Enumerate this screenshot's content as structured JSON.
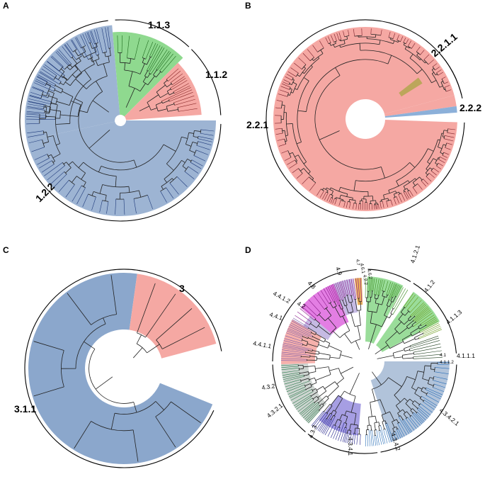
{
  "panels": {
    "A": {
      "letter": "A",
      "clades": [
        {
          "label": "1.1.3",
          "color": "#8fd98f"
        },
        {
          "label": "1.1.2",
          "color": "#f5a8a3"
        },
        {
          "label": "1.2.2",
          "color": "#9db4d3"
        }
      ]
    },
    "B": {
      "letter": "B",
      "clades": [
        {
          "label": "2.2.1.1",
          "color": "#b1a64f"
        },
        {
          "label": "2.2.2",
          "color": "#8cb0d9"
        },
        {
          "label": "2.2.1",
          "color": "#f5a8a3"
        }
      ]
    },
    "C": {
      "letter": "C",
      "clades": [
        {
          "label": "3",
          "color": "#f5a8a3"
        },
        {
          "label": "3.1.1",
          "color": "#8ba7cc"
        }
      ]
    },
    "D": {
      "letter": "D",
      "labels": [
        "4.1.2.1",
        "4.1.2",
        "4.1.1.3",
        "4.1.1.1",
        "4.1.1.2",
        "4.1",
        "4.3.4.2.1",
        "4.3.4.2",
        "4.3.4.1",
        "4.3.3",
        "4.3.2.1",
        "4.3.2",
        "4.4.1.1",
        "4.4.1",
        "4.4.1.2",
        "4.2",
        "4.8",
        "4.9",
        "4.6.1",
        "4.6.2",
        "4.2.2",
        "4.7"
      ],
      "colors": {
        "green": "#8fd98f",
        "blue": "#a9bcd6",
        "pink": "#f5a8a3",
        "purple": "#9c94e0",
        "magenta": "#e070e0",
        "lavender": "#bfb3e0",
        "orange": "#e7a64a",
        "grey": "#c9d0cc"
      }
    }
  }
}
